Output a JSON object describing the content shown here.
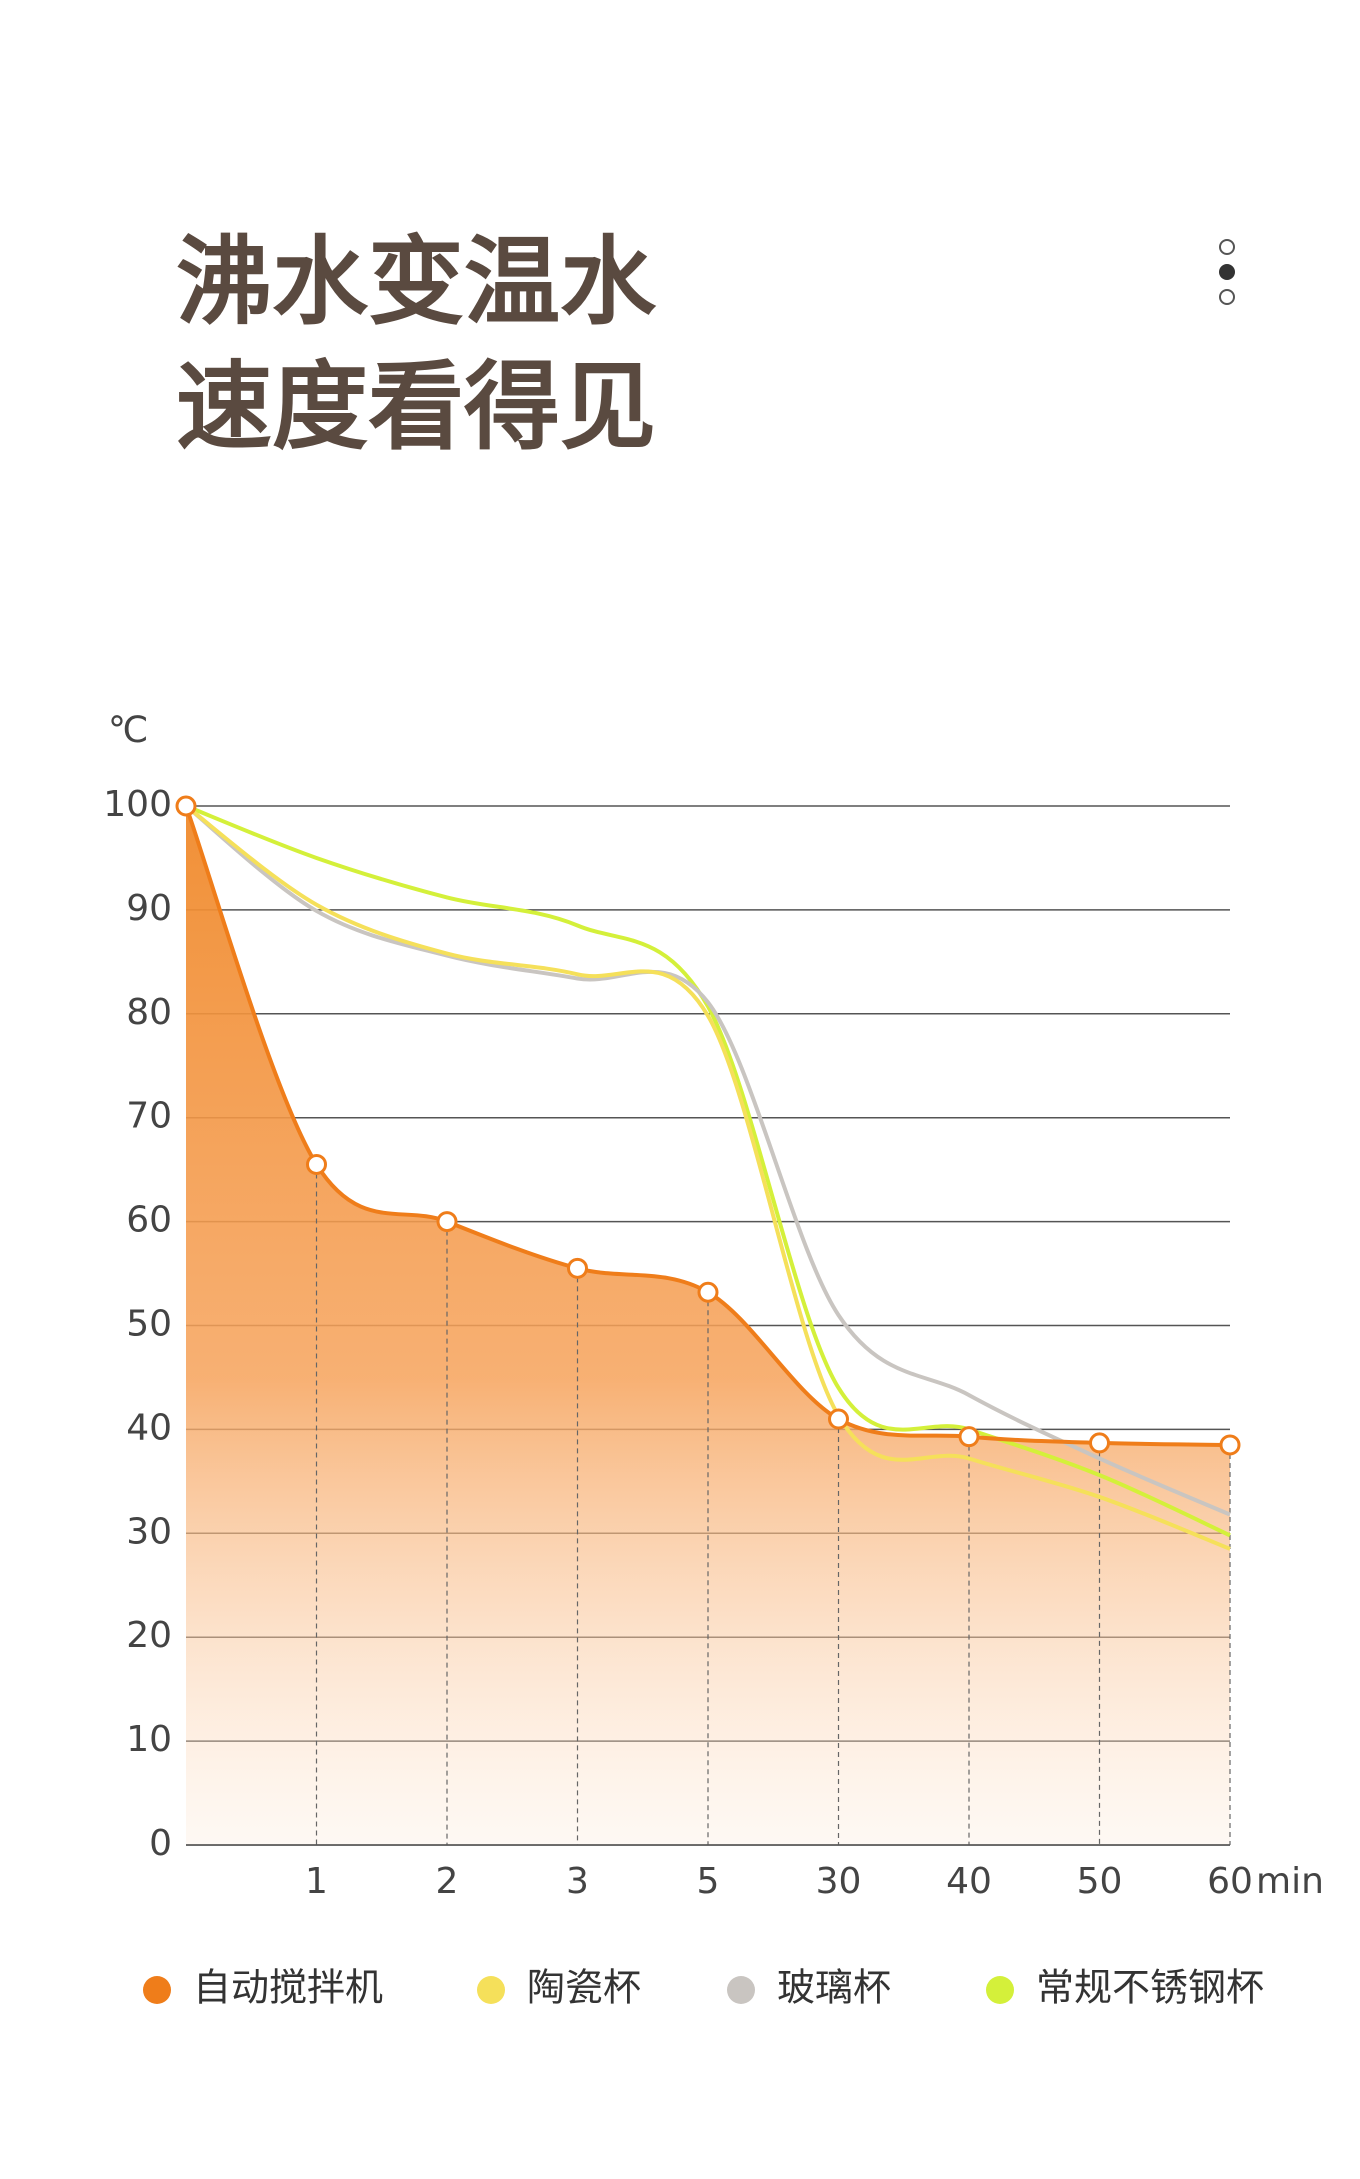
{
  "chart_data": {
    "type": "line",
    "title": [
      "沸水变温水",
      "速度看得见"
    ],
    "y_label": "℃",
    "x_unit": "min",
    "categories": [
      null,
      "1",
      "2",
      "3",
      "5",
      "30",
      "40",
      "50",
      "60"
    ],
    "ylim": [
      0,
      100
    ],
    "yticks": [
      0,
      10,
      20,
      30,
      40,
      50,
      60,
      70,
      80,
      90,
      100
    ],
    "grid": true,
    "legend": "bottom",
    "series": [
      {
        "name": "自动搅拌机",
        "color": "#ef7d1a",
        "fill": true,
        "markers": true,
        "values": [
          100,
          65.5,
          60,
          55.5,
          53.2,
          41,
          39.3,
          38.7,
          38.5
        ]
      },
      {
        "name": "陶瓷杯",
        "color": "#f5e05a",
        "values": [
          100,
          90.5,
          85.8,
          83.8,
          79.8,
          41.3,
          37.2,
          33.5,
          28.5
        ]
      },
      {
        "name": "玻璃杯",
        "color": "#c9c5c1",
        "values": [
          100,
          89.9,
          85.6,
          83.4,
          81.1,
          51,
          43.3,
          37.2,
          31.8
        ]
      },
      {
        "name": "常规不锈钢杯",
        "color": "#d4f03a",
        "values": [
          100,
          95,
          91.2,
          88.5,
          80.7,
          44,
          40,
          35.6,
          29.8
        ]
      }
    ]
  }
}
